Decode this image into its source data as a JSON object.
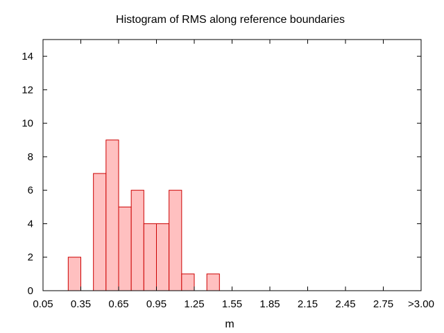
{
  "chart_data": {
    "type": "bar",
    "title": "Histogram of RMS along reference boundaries",
    "xlabel": "m",
    "ylabel": "",
    "x_tick_labels": [
      "0.05",
      "0.35",
      "0.65",
      "0.95",
      "1.25",
      "1.55",
      "1.85",
      "2.15",
      "2.45",
      "2.75",
      ">3.00"
    ],
    "y_tick_labels": [
      "0",
      "2",
      "4",
      "6",
      "8",
      "10",
      "12",
      "14"
    ],
    "xlim": [
      0,
      3.0
    ],
    "ylim": [
      0,
      15
    ],
    "bin_width": 0.1,
    "bins": [
      {
        "x": 0.25,
        "value": 2
      },
      {
        "x": 0.45,
        "value": 7
      },
      {
        "x": 0.55,
        "value": 9
      },
      {
        "x": 0.65,
        "value": 5
      },
      {
        "x": 0.75,
        "value": 6
      },
      {
        "x": 0.85,
        "value": 4
      },
      {
        "x": 0.95,
        "value": 4
      },
      {
        "x": 1.05,
        "value": 6
      },
      {
        "x": 1.15,
        "value": 1
      },
      {
        "x": 1.35,
        "value": 1
      }
    ],
    "bar_fill": "#ffc0c0",
    "bar_stroke": "#cc0000",
    "grid": false,
    "legend": "none"
  }
}
